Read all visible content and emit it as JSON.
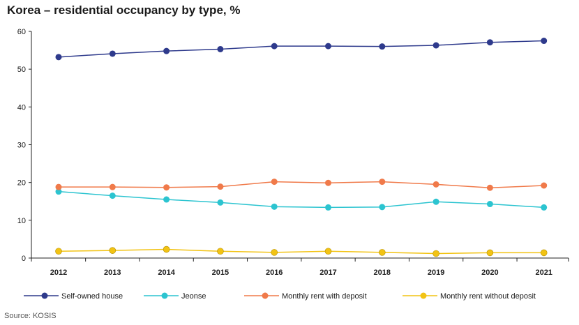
{
  "title": "Korea – residential occupancy by type, %",
  "source": "Source: KOSIS",
  "chart_data": {
    "type": "line",
    "title": "Korea – residential occupancy by type, %",
    "xlabel": "",
    "ylabel": "",
    "ylim": [
      0,
      60
    ],
    "yticks": [
      0,
      10,
      20,
      30,
      40,
      50,
      60
    ],
    "categories": [
      "2012",
      "2013",
      "2014",
      "2015",
      "2016",
      "2017",
      "2018",
      "2019",
      "2020",
      "2021"
    ],
    "grid": false,
    "legend_position": "bottom",
    "series": [
      {
        "name": "Self-owned house",
        "color": "#2e3a8c",
        "values": [
          53.2,
          54.1,
          54.8,
          55.3,
          56.1,
          56.1,
          56.0,
          56.3,
          57.1,
          57.5
        ]
      },
      {
        "name": "Jeonse",
        "color": "#2cc4d0",
        "values": [
          17.6,
          16.5,
          15.5,
          14.7,
          13.6,
          13.4,
          13.5,
          14.9,
          14.3,
          13.4
        ]
      },
      {
        "name": "Monthly rent with deposit",
        "color": "#f07a4a",
        "values": [
          18.8,
          18.8,
          18.7,
          18.9,
          20.2,
          19.9,
          20.2,
          19.5,
          18.6,
          19.2
        ]
      },
      {
        "name": "Monthly rent without deposit",
        "color": "#f2c314",
        "values": [
          1.8,
          2.0,
          2.3,
          1.8,
          1.5,
          1.8,
          1.5,
          1.2,
          1.4,
          1.4
        ]
      }
    ]
  }
}
